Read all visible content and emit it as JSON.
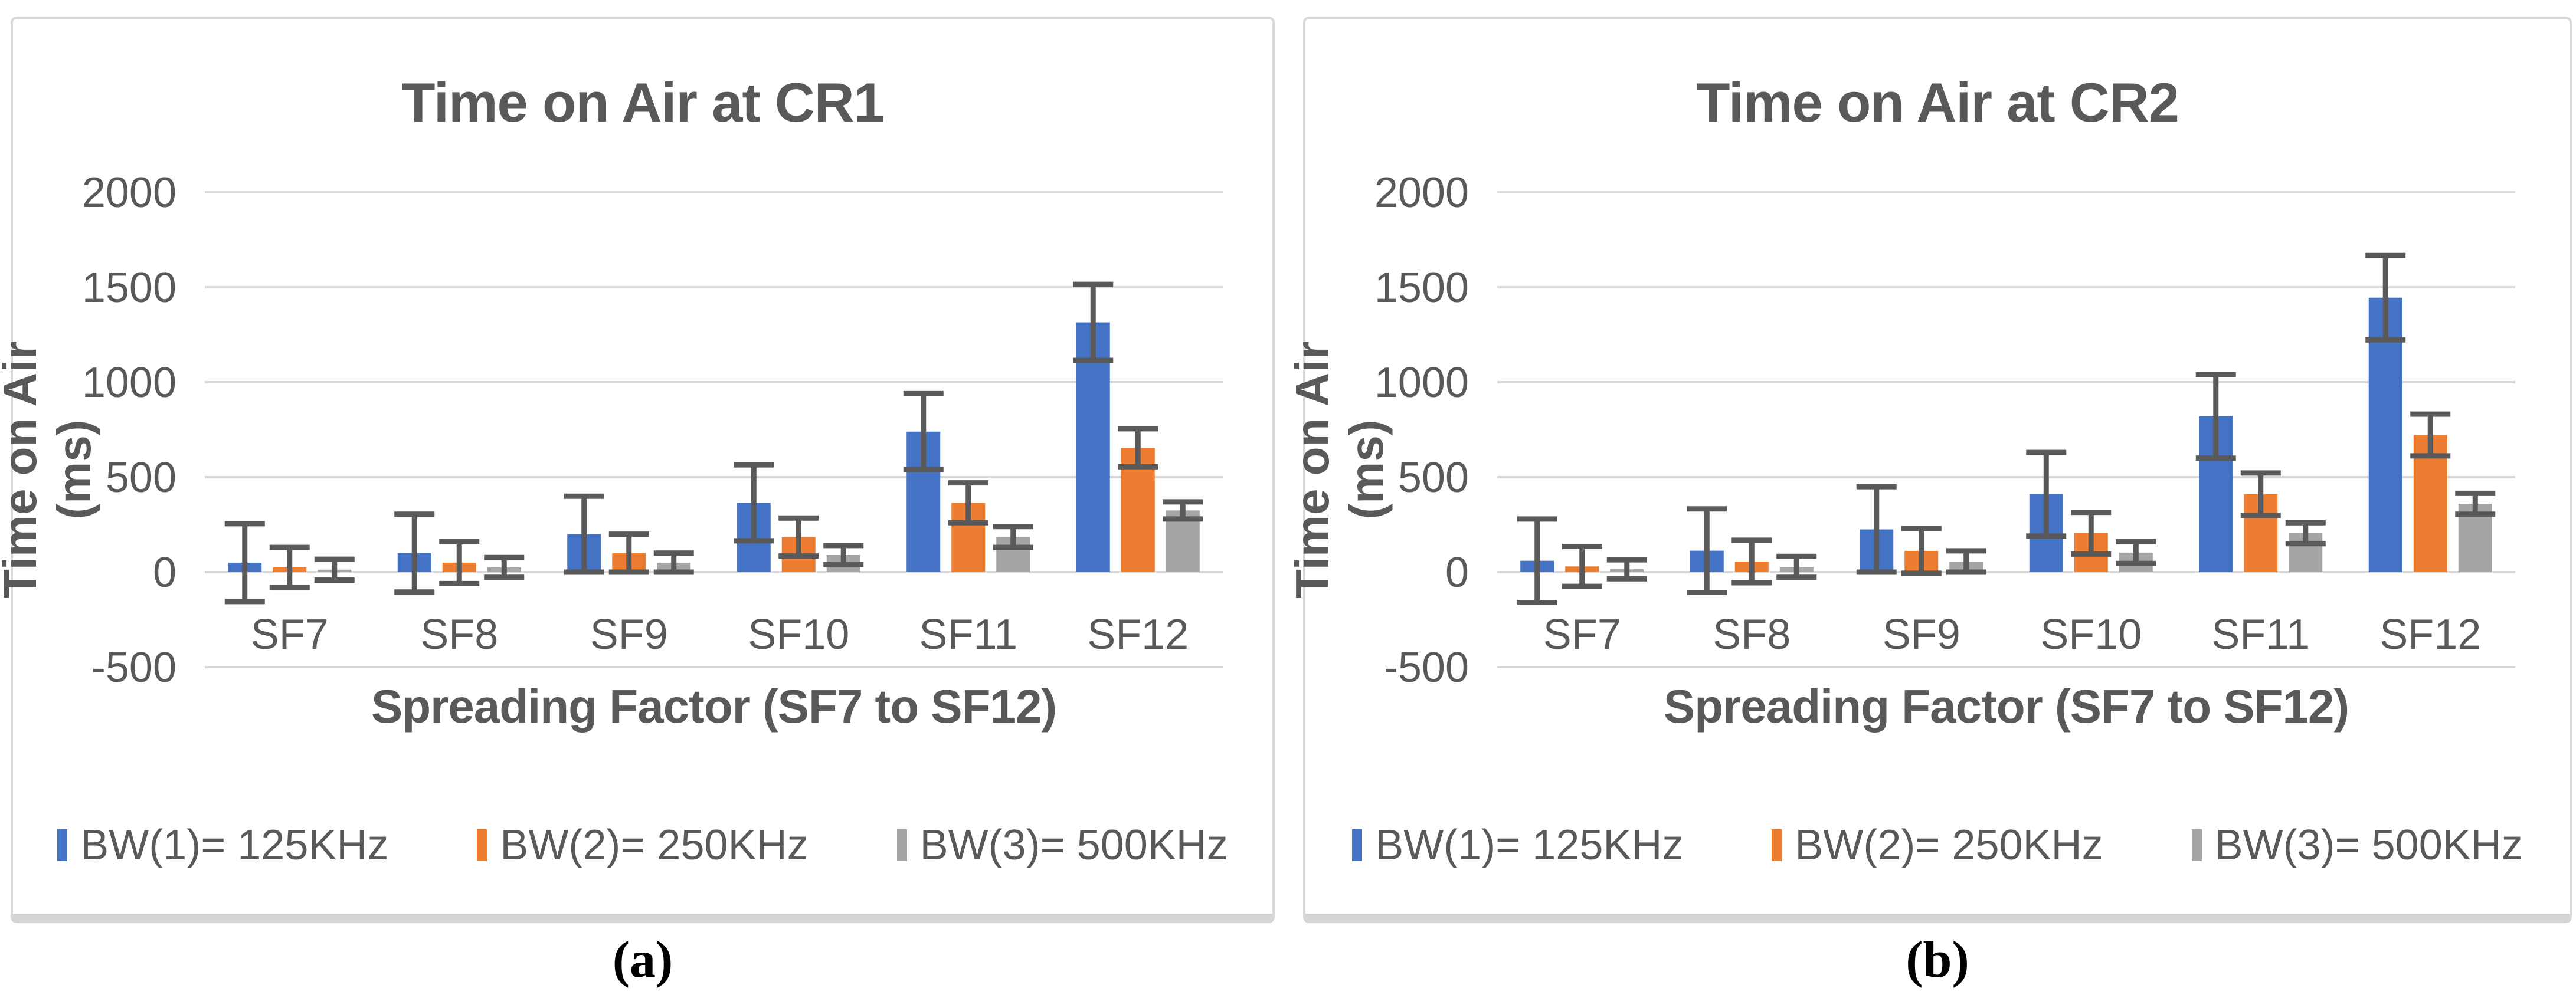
{
  "figure": {
    "captions": {
      "a": "(a)",
      "b": "(b)"
    },
    "colors": {
      "grid": "#d9d9d9",
      "error_bar": "#595959",
      "text": "#595959",
      "panel_border": "#d9d9d9"
    }
  },
  "charts": [
    {
      "id": "cr1",
      "title": "Time on Air at CR1",
      "caption": "(a)",
      "chart_data": {
        "type": "bar",
        "title": "Time on Air at CR1",
        "xlabel": "Spreading Factor (SF7 to SF12)",
        "ylabel": "Time on Air (ms)",
        "ylim": [
          -500,
          2000
        ],
        "yticks": [
          2000,
          1500,
          1000,
          500,
          0,
          -500
        ],
        "grid": true,
        "legend_position": "bottom",
        "categories": [
          "SF7",
          "SF8",
          "SF9",
          "SF10",
          "SF11",
          "SF12"
        ],
        "series": [
          {
            "name": "BW(1)= 125KHz",
            "color": "#4472C4",
            "values": [
              50,
              100,
              200,
              365,
              740,
              1315
            ],
            "errors": [
              205,
              205,
              200,
              200,
              200,
              200
            ]
          },
          {
            "name": "BW(2)= 250KHz",
            "color": "#ED7D31",
            "values": [
              25,
              50,
              100,
              185,
              365,
              655
            ],
            "errors": [
              105,
              110,
              100,
              100,
              105,
              100
            ]
          },
          {
            "name": "BW(3)= 500KHz",
            "color": "#A5A5A5",
            "values": [
              13,
              25,
              50,
              90,
              185,
              325
            ],
            "errors": [
              55,
              52,
              50,
              50,
              55,
              45
            ]
          }
        ]
      }
    },
    {
      "id": "cr2",
      "title": "Time on Air at CR2",
      "caption": "(b)",
      "chart_data": {
        "type": "bar",
        "title": "Time on Air at CR2",
        "xlabel": "Spreading Factor (SF7 to SF12)",
        "ylabel": "Time on Air (ms)",
        "ylim": [
          -500,
          2000
        ],
        "yticks": [
          2000,
          1500,
          1000,
          500,
          0,
          -500
        ],
        "grid": true,
        "legend_position": "bottom",
        "categories": [
          "SF7",
          "SF8",
          "SF9",
          "SF10",
          "SF11",
          "SF12"
        ],
        "series": [
          {
            "name": "BW(1)= 125KHz",
            "color": "#4472C4",
            "values": [
              60,
              113,
              225,
              410,
              820,
              1445
            ],
            "errors": [
              220,
              220,
              225,
              220,
              220,
              222
            ]
          },
          {
            "name": "BW(2)= 250KHz",
            "color": "#ED7D31",
            "values": [
              30,
              56,
              112,
              205,
              410,
              722
            ],
            "errors": [
              105,
              112,
              118,
              110,
              112,
              110
            ]
          },
          {
            "name": "BW(3)= 500KHz",
            "color": "#A5A5A5",
            "values": [
              15,
              28,
              56,
              103,
              205,
              360
            ],
            "errors": [
              50,
              55,
              56,
              57,
              55,
              55
            ]
          }
        ]
      }
    }
  ]
}
